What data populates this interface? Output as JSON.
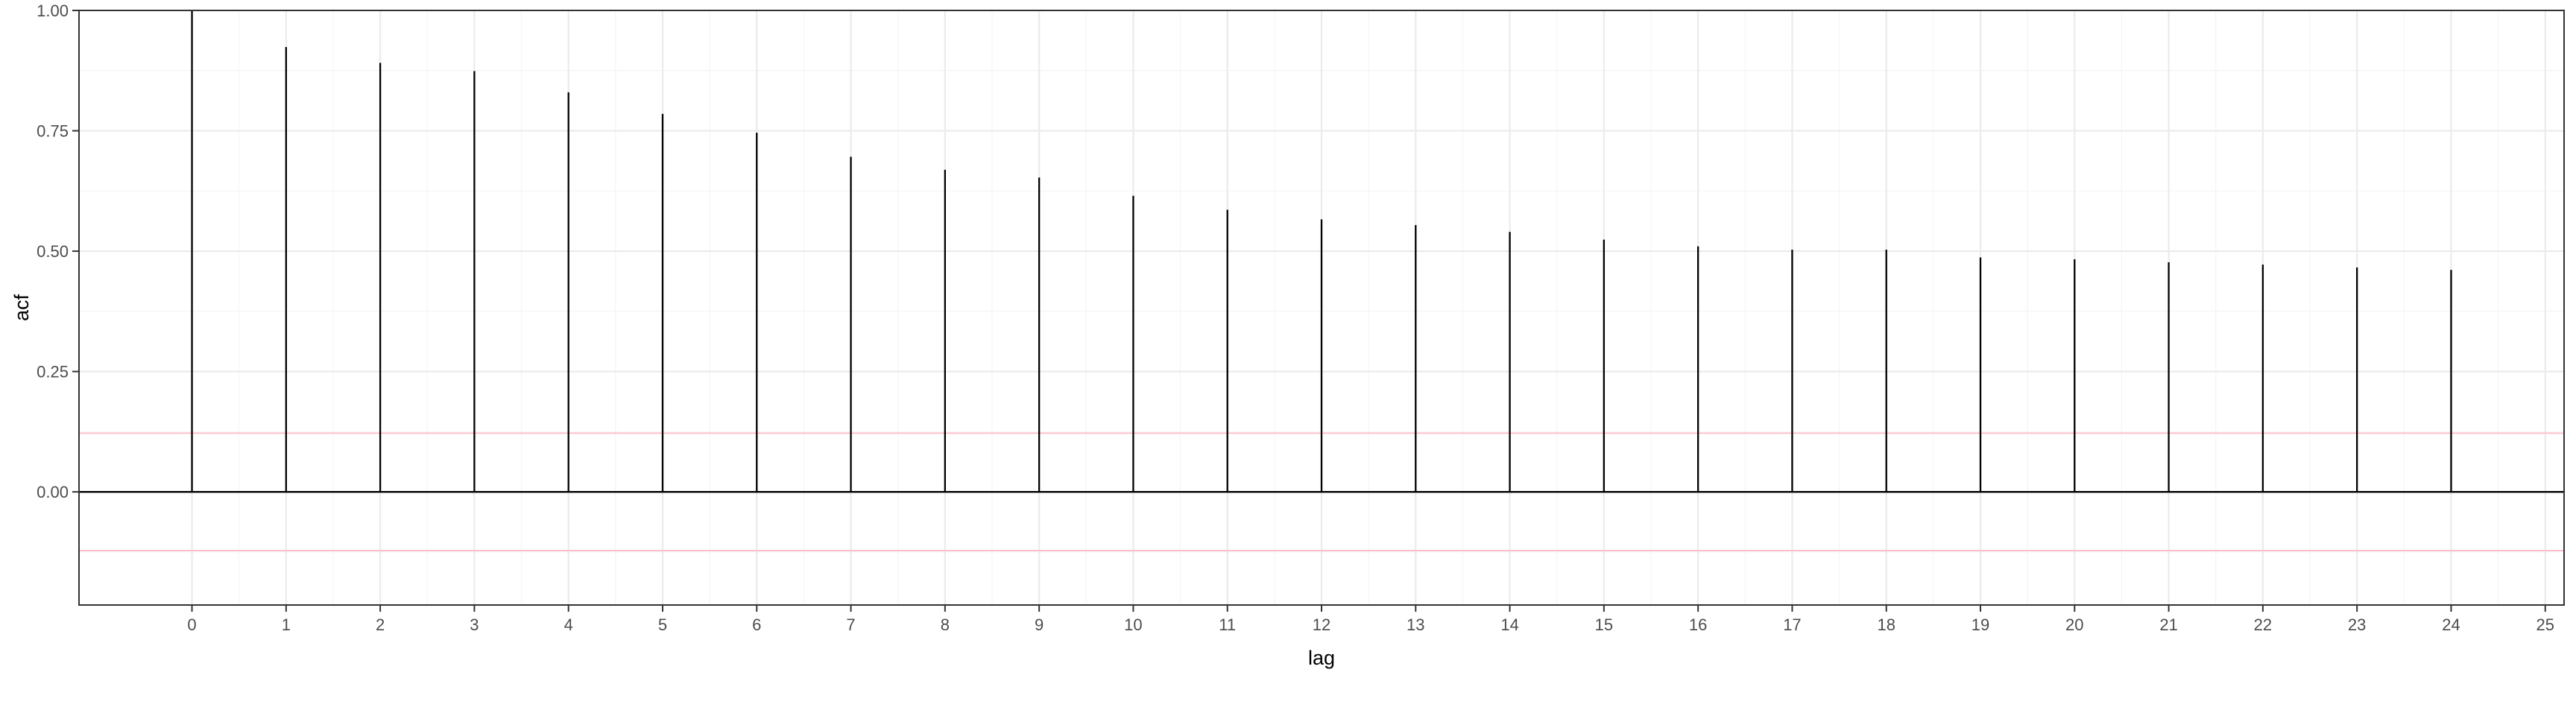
{
  "chart_data": {
    "type": "bar",
    "style": "acf-lollipop",
    "xlabel": "lag",
    "ylabel": "acf",
    "x": [
      0,
      1,
      2,
      3,
      4,
      5,
      6,
      7,
      8,
      9,
      10,
      11,
      12,
      13,
      14,
      15,
      16,
      17,
      18,
      19,
      20,
      21,
      22,
      23,
      24
    ],
    "values": [
      1.0,
      0.924,
      0.891,
      0.874,
      0.83,
      0.785,
      0.746,
      0.696,
      0.669,
      0.653,
      0.615,
      0.586,
      0.566,
      0.554,
      0.54,
      0.524,
      0.51,
      0.503,
      0.503,
      0.487,
      0.483,
      0.477,
      0.472,
      0.466,
      0.461
    ],
    "xlim": [
      -1.2,
      25.2
    ],
    "ylim": [
      -0.235,
      1.0
    ],
    "xticks": [
      0,
      1,
      2,
      3,
      4,
      5,
      6,
      7,
      8,
      9,
      10,
      11,
      12,
      13,
      14,
      15,
      16,
      17,
      18,
      19,
      20,
      21,
      22,
      23,
      24,
      25
    ],
    "xtick_labels": [
      "0",
      "1",
      "2",
      "3",
      "4",
      "5",
      "6",
      "7",
      "8",
      "9",
      "10",
      "11",
      "12",
      "13",
      "14",
      "15",
      "16",
      "17",
      "18",
      "19",
      "20",
      "21",
      "22",
      "23",
      "24",
      "25"
    ],
    "yticks": [
      0,
      0.25,
      0.5,
      0.75,
      1.0
    ],
    "ytick_labels": [
      "0.00",
      "0.25",
      "0.50",
      "0.75",
      "1.00"
    ],
    "hlines": [
      {
        "y": 0.0,
        "color": "#000000"
      },
      {
        "y": 0.122,
        "color": "#ffc0cb"
      },
      {
        "y": -0.122,
        "color": "#ffc0cb"
      }
    ],
    "grid": true,
    "legend": "none",
    "bar_color": "#000000"
  }
}
